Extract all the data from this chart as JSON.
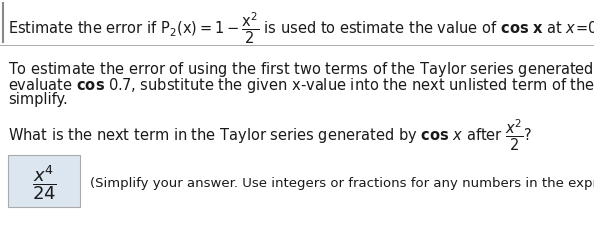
{
  "bg_color": "#ffffff",
  "answer_box_color": "#dce6f1",
  "hint_text": "(Simplify your answer. Use integers or fractions for any numbers in the expression.)",
  "font_size_body": 10.5,
  "font_size_hint": 9.5,
  "left_border_color": "#888888",
  "sep_line_color": "#aaaaaa",
  "text_color": "#1a1a1a"
}
